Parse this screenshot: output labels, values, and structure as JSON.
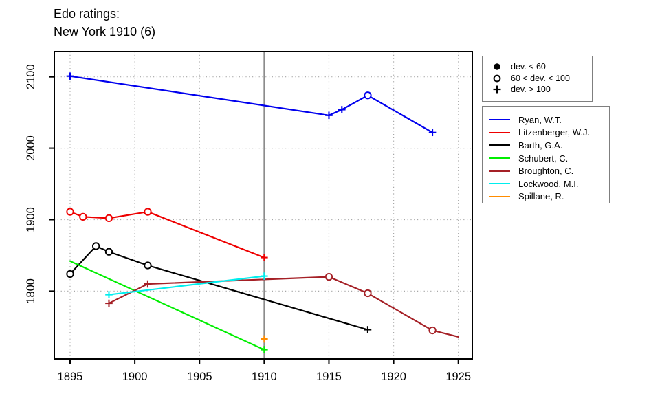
{
  "title": {
    "line1": "Edo ratings:",
    "line2": "New York 1910 (6)"
  },
  "symbol_legend": {
    "items": [
      {
        "symbol": "filled-circle",
        "label": "dev. < 60"
      },
      {
        "symbol": "open-circle",
        "label": "60 < dev. < 100"
      },
      {
        "symbol": "plus",
        "label": "dev. > 100"
      }
    ]
  },
  "chart_data": {
    "type": "line",
    "title": "Edo ratings: New York 1910 (6)",
    "xlabel": "",
    "ylabel": "",
    "xlim": [
      1893.8,
      1926.1
    ],
    "ylim": [
      1705,
      2135
    ],
    "xticks": [
      1895,
      1900,
      1905,
      1910,
      1915,
      1920,
      1925
    ],
    "yticks": [
      1800,
      1900,
      2000,
      2100
    ],
    "grid": "dotted",
    "reference_line_x": 1910,
    "reference_line_color": "#8c8c8c",
    "grid_color": "#a6a6a6",
    "legend_position": "right",
    "series": [
      {
        "name": "Ryan, W.T.",
        "color": "#0000ee",
        "points": [
          {
            "year": 1895,
            "rating": 2101,
            "marker": "plus"
          },
          {
            "year": 1915,
            "rating": 2046,
            "marker": "plus"
          },
          {
            "year": 1916,
            "rating": 2054,
            "marker": "plus"
          },
          {
            "year": 1918,
            "rating": 2074,
            "marker": "open-circle"
          },
          {
            "year": 1923,
            "rating": 2022,
            "marker": "plus"
          }
        ]
      },
      {
        "name": "Litzenberger, W.J.",
        "color": "#ee0000",
        "points": [
          {
            "year": 1895,
            "rating": 1911,
            "marker": "open-circle"
          },
          {
            "year": 1896,
            "rating": 1904,
            "marker": "open-circle"
          },
          {
            "year": 1898,
            "rating": 1902,
            "marker": "open-circle"
          },
          {
            "year": 1901,
            "rating": 1911,
            "marker": "open-circle"
          },
          {
            "year": 1910,
            "rating": 1847,
            "marker": "plus"
          }
        ]
      },
      {
        "name": "Barth, G.A.",
        "color": "#000000",
        "points": [
          {
            "year": 1895,
            "rating": 1824,
            "marker": "open-circle"
          },
          {
            "year": 1897,
            "rating": 1863,
            "marker": "open-circle"
          },
          {
            "year": 1898,
            "rating": 1855,
            "marker": "open-circle"
          },
          {
            "year": 1901,
            "rating": 1836,
            "marker": "open-circle"
          },
          {
            "year": 1918,
            "rating": 1746,
            "marker": "plus"
          }
        ]
      },
      {
        "name": "Schubert, C.",
        "color": "#00ee00",
        "points": [
          {
            "year": 1895,
            "rating": 1842,
            "marker": "none"
          },
          {
            "year": 1910,
            "rating": 1718,
            "marker": "plus"
          }
        ]
      },
      {
        "name": "Broughton, C.",
        "color": "#a52026",
        "points": [
          {
            "year": 1898,
            "rating": 1783,
            "marker": "plus"
          },
          {
            "year": 1901,
            "rating": 1810,
            "marker": "plus"
          },
          {
            "year": 1915,
            "rating": 1820,
            "marker": "open-circle"
          },
          {
            "year": 1918,
            "rating": 1797,
            "marker": "open-circle"
          },
          {
            "year": 1923,
            "rating": 1745,
            "marker": "open-circle"
          },
          {
            "year": 1925,
            "rating": 1736,
            "marker": "none"
          }
        ]
      },
      {
        "name": "Lockwood, M.I.",
        "color": "#00eeee",
        "points": [
          {
            "year": 1898,
            "rating": 1795,
            "marker": "plus"
          },
          {
            "year": 1910,
            "rating": 1821,
            "marker": "plus"
          }
        ]
      },
      {
        "name": "Spillane, R.",
        "color": "#ff8c00",
        "points": [
          {
            "year": 1910,
            "rating": 1733,
            "marker": "plus"
          }
        ]
      }
    ]
  }
}
